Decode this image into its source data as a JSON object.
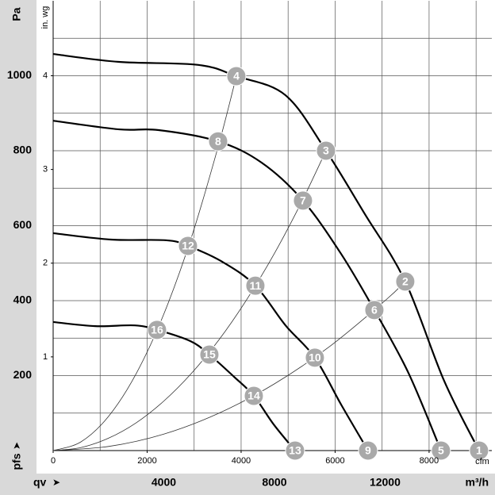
{
  "chart_data": {
    "type": "line",
    "y_label": "Pa",
    "y2_label": "in. wg",
    "y_symbol": "pfs",
    "x_label": "qv",
    "x_unit": "m³/h",
    "x2_unit": "cfm",
    "xlim": [
      0,
      15860
    ],
    "x2lim": [
      0,
      9335
    ],
    "ylim": [
      0,
      1200
    ],
    "y2lim": [
      0,
      4.8
    ],
    "xticks": [
      4000,
      8000,
      12000
    ],
    "x2ticks": [
      0,
      2000,
      4000,
      6000,
      8000
    ],
    "yticks": [
      200,
      400,
      600,
      800,
      1000
    ],
    "y2ticks": [
      1,
      2,
      3,
      4
    ],
    "x2grid": [
      0,
      1000,
      2000,
      3000,
      4000,
      5000,
      6000,
      7000,
      8000,
      9000
    ],
    "ygrid": [
      100,
      200,
      300,
      400,
      500,
      600,
      700,
      800,
      900,
      1000,
      1100
    ],
    "series": [
      {
        "color": "#000000",
        "width": 2.2,
        "x": [
          0,
          2380,
          5247,
          6624,
          8401,
          9864,
          11269,
          12731,
          14136,
          15398
        ],
        "values": [
          1058,
          1037,
          1029,
          999,
          948,
          800,
          631,
          451,
          186,
          0
        ]
      },
      {
        "color": "#000000",
        "width": 2.2,
        "x": [
          0,
          2380,
          3814,
          5964,
          7541,
          9032,
          10409,
          11613,
          12846,
          14022
        ],
        "values": [
          880,
          857,
          855,
          825,
          768,
          667,
          525,
          375,
          207,
          0
        ]
      },
      {
        "color": "#000000",
        "width": 2.2,
        "x": [
          0,
          2093,
          4100,
          4875,
          6108,
          7312,
          8401,
          9462,
          10409,
          11384
        ],
        "values": [
          580,
          563,
          561,
          546,
          504,
          440,
          334,
          248,
          123,
          0
        ]
      },
      {
        "color": "#000000",
        "width": 2.2,
        "x": [
          0,
          1520,
          2953,
          3756,
          4961,
          5649,
          6538,
          7255,
          7971,
          8746
        ],
        "values": [
          343,
          332,
          334,
          322,
          292,
          256,
          197,
          146,
          70,
          0
        ]
      },
      {
        "color": "#333333",
        "width": 0.8,
        "x": [
          0,
          1000,
          2000,
          3000,
          4000,
          5000,
          6000,
          6624
        ],
        "values": [
          0,
          23,
          91,
          205,
          364,
          569,
          820,
          999
        ]
      },
      {
        "color": "#333333",
        "width": 0.8,
        "x": [
          0,
          1000,
          2000,
          3000,
          4000,
          5000,
          6000,
          7000,
          8000,
          9000,
          9864
        ],
        "values": [
          0,
          8,
          33,
          74,
          132,
          206,
          296,
          403,
          526,
          666,
          800
        ]
      },
      {
        "color": "#333333",
        "width": 0.8,
        "x": [
          0,
          2000,
          4000,
          6000,
          8000,
          10000,
          12000,
          12731
        ],
        "values": [
          0,
          11,
          44,
          100,
          178,
          278,
          400,
          451
        ]
      }
    ],
    "markers": [
      {
        "label": "1",
        "x": 15398,
        "y": 0
      },
      {
        "label": "2",
        "x": 12731,
        "y": 451
      },
      {
        "label": "3",
        "x": 9864,
        "y": 800
      },
      {
        "label": "4",
        "x": 6624,
        "y": 999
      },
      {
        "label": "5",
        "x": 14022,
        "y": 0
      },
      {
        "label": "6",
        "x": 11613,
        "y": 375
      },
      {
        "label": "7",
        "x": 9032,
        "y": 667
      },
      {
        "label": "8",
        "x": 5964,
        "y": 825
      },
      {
        "label": "9",
        "x": 11384,
        "y": 0
      },
      {
        "label": "10",
        "x": 9462,
        "y": 248
      },
      {
        "label": "11",
        "x": 7312,
        "y": 440
      },
      {
        "label": "12",
        "x": 4875,
        "y": 546
      },
      {
        "label": "13",
        "x": 8746,
        "y": 0
      },
      {
        "label": "14",
        "x": 7255,
        "y": 146
      },
      {
        "label": "15",
        "x": 5649,
        "y": 256
      },
      {
        "label": "16",
        "x": 3756,
        "y": 322
      }
    ]
  }
}
